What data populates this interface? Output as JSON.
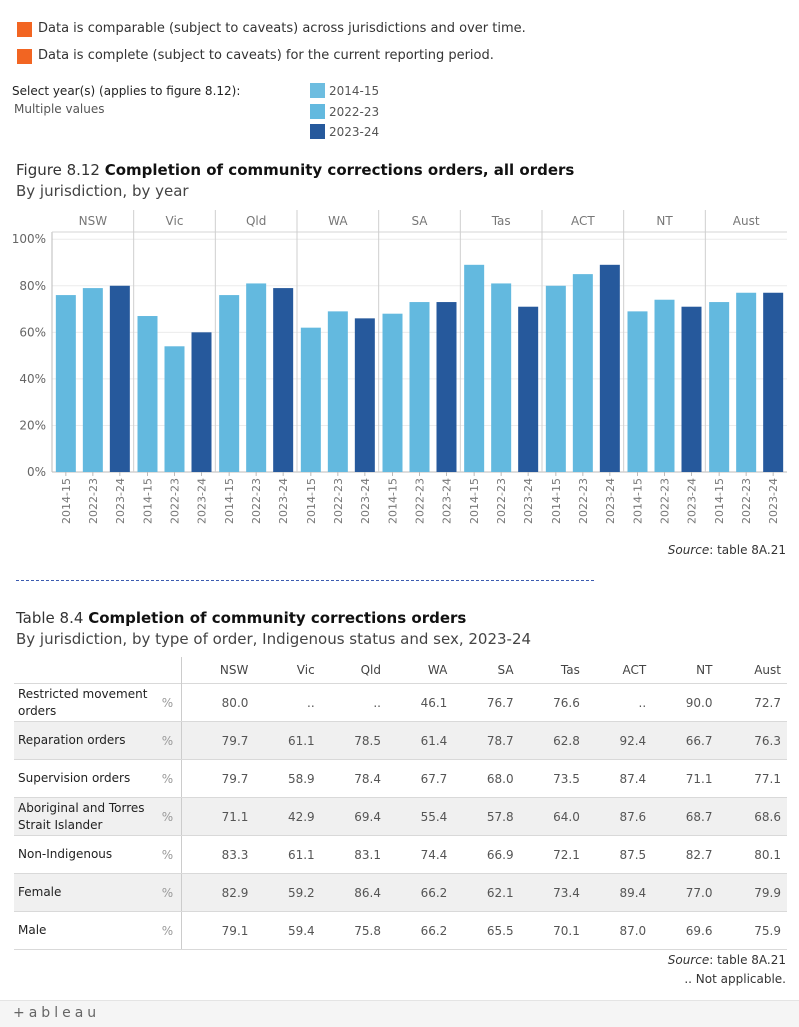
{
  "legend_notes": [
    {
      "text": "Data is comparable (subject to caveats) across jurisdictions and over time.",
      "color": "#f26522"
    },
    {
      "text": "Data is complete (subject to caveats) for the current reporting period.",
      "color": "#f26522"
    }
  ],
  "filter": {
    "label": "Select year(s) (applies to figure 8.12):",
    "value": "Multiple values"
  },
  "year_legend": [
    {
      "label": "2014-15",
      "color": "#6dbde0"
    },
    {
      "label": "2022-23",
      "color": "#63b9df"
    },
    {
      "label": "2023-24",
      "color": "#26599c"
    }
  ],
  "figure": {
    "prefix": "Figure 8.12 ",
    "title": "Completion of community corrections orders, all orders",
    "subtitle": "By jurisdiction, by year",
    "source_prefix": "Source",
    "source_rest": ": table 8A.21"
  },
  "chart_data": {
    "type": "bar",
    "title": "Completion of community corrections orders, all orders",
    "xlabel": "",
    "ylabel": "",
    "ylim": [
      0,
      100
    ],
    "yticks": [
      "0%",
      "20%",
      "40%",
      "60%",
      "80%",
      "100%"
    ],
    "groups": [
      "NSW",
      "Vic",
      "Qld",
      "WA",
      "SA",
      "Tas",
      "ACT",
      "NT",
      "Aust"
    ],
    "years": [
      "2014-15",
      "2022-23",
      "2023-24"
    ],
    "series": [
      {
        "name": "2014-15",
        "color": "#63b9df",
        "values": [
          76,
          67,
          76,
          62,
          68,
          89,
          80,
          69,
          73
        ]
      },
      {
        "name": "2022-23",
        "color": "#63b9df",
        "values": [
          79,
          54,
          81,
          69,
          73,
          81,
          85,
          74,
          77
        ]
      },
      {
        "name": "2023-24",
        "color": "#26599c",
        "values": [
          80,
          60,
          79,
          66,
          73,
          71,
          89,
          71,
          77
        ]
      }
    ]
  },
  "table": {
    "prefix": "Table 8.4 ",
    "title": "Completion of community corrections orders",
    "subtitle": "By jurisdiction, by type of order, Indigenous status and sex, 2023-24",
    "columns": [
      "NSW",
      "Vic",
      "Qld",
      "WA",
      "SA",
      "Tas",
      "ACT",
      "NT",
      "Aust"
    ],
    "rows": [
      {
        "label": "Restricted movement orders",
        "unit": "%",
        "values": [
          "80.0",
          "..",
          "..",
          "46.1",
          "76.7",
          "76.6",
          "..",
          "90.0",
          "72.7"
        ]
      },
      {
        "label": "Reparation orders",
        "unit": "%",
        "values": [
          "79.7",
          "61.1",
          "78.5",
          "61.4",
          "78.7",
          "62.8",
          "92.4",
          "66.7",
          "76.3"
        ]
      },
      {
        "label": "Supervision orders",
        "unit": "%",
        "values": [
          "79.7",
          "58.9",
          "78.4",
          "67.7",
          "68.0",
          "73.5",
          "87.4",
          "71.1",
          "77.1"
        ]
      },
      {
        "label": "Aboriginal and Torres Strait Islander",
        "unit": "%",
        "values": [
          "71.1",
          "42.9",
          "69.4",
          "55.4",
          "57.8",
          "64.0",
          "87.6",
          "68.7",
          "68.6"
        ]
      },
      {
        "label": "Non-Indigenous",
        "unit": "%",
        "values": [
          "83.3",
          "61.1",
          "83.1",
          "74.4",
          "66.9",
          "72.1",
          "87.5",
          "82.7",
          "80.1"
        ]
      },
      {
        "label": "Female",
        "unit": "%",
        "values": [
          "82.9",
          "59.2",
          "86.4",
          "66.2",
          "62.1",
          "73.4",
          "89.4",
          "77.0",
          "79.9"
        ]
      },
      {
        "label": "Male",
        "unit": "%",
        "values": [
          "79.1",
          "59.4",
          "75.8",
          "66.2",
          "65.5",
          "70.1",
          "87.0",
          "69.6",
          "75.9"
        ]
      }
    ],
    "source_prefix": "Source",
    "source_rest": ": table 8A.21",
    "na_note": ".. Not applicable."
  },
  "footer": {
    "logo": "+ableau"
  }
}
